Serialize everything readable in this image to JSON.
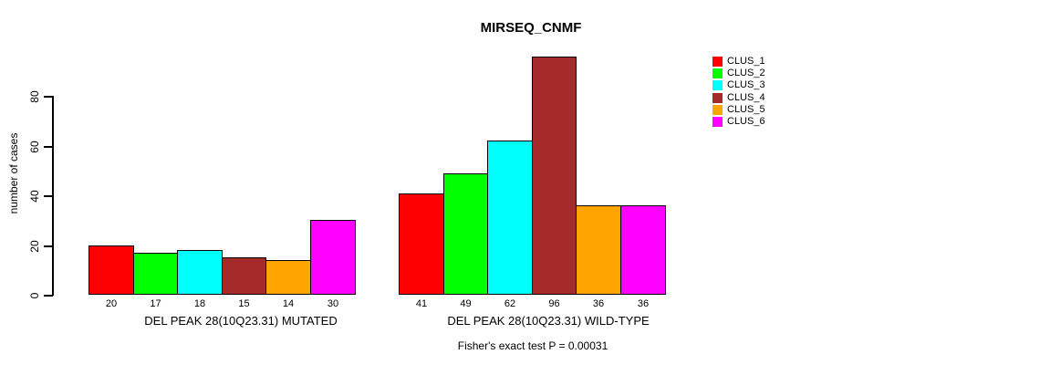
{
  "title": "MIRSEQ_CNMF",
  "footer": "Fisher's exact test P = 0.00031",
  "y_axis": {
    "label": "number of cases",
    "ticks": [
      0,
      20,
      40,
      60,
      80
    ]
  },
  "legend": {
    "items": [
      {
        "label": "CLUS_1",
        "color": "#FF0000"
      },
      {
        "label": "CLUS_2",
        "color": "#00FF00"
      },
      {
        "label": "CLUS_3",
        "color": "#00FFFF"
      },
      {
        "label": "CLUS_4",
        "color": "#A52A2A"
      },
      {
        "label": "CLUS_5",
        "color": "#FFA500"
      },
      {
        "label": "CLUS_6",
        "color": "#FF00FF"
      }
    ]
  },
  "chart_data": {
    "type": "bar",
    "title": "MIRSEQ_CNMF",
    "xlabel": "",
    "ylabel": "number of cases",
    "yticks": [
      0,
      20,
      40,
      60,
      80
    ],
    "ylim": [
      0,
      96
    ],
    "grid": false,
    "legend_position": "right",
    "bar_value_labels": true,
    "annotation": "Fisher's exact test P = 0.00031",
    "categories": [
      "DEL PEAK 28(10Q23.31) MUTATED",
      "DEL PEAK 28(10Q23.31) WILD-TYPE"
    ],
    "series": [
      {
        "name": "CLUS_1",
        "color": "#FF0000",
        "values": [
          20,
          41
        ]
      },
      {
        "name": "CLUS_2",
        "color": "#00FF00",
        "values": [
          17,
          49
        ]
      },
      {
        "name": "CLUS_3",
        "color": "#00FFFF",
        "values": [
          18,
          62
        ]
      },
      {
        "name": "CLUS_4",
        "color": "#A52A2A",
        "values": [
          15,
          96
        ]
      },
      {
        "name": "CLUS_5",
        "color": "#FFA500",
        "values": [
          14,
          36
        ]
      },
      {
        "name": "CLUS_6",
        "color": "#FF00FF",
        "values": [
          30,
          36
        ]
      }
    ]
  }
}
